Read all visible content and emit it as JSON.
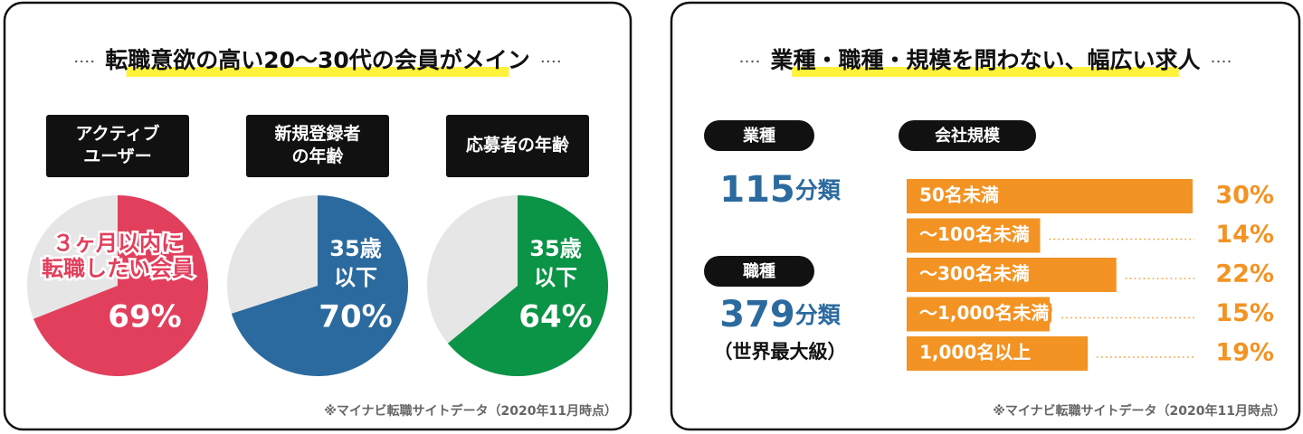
{
  "panels": [
    {
      "title": "転職意欲の高い20〜30代の会員がメイン",
      "source": "※マイナビ転職サイトデータ（2020年11月時点）"
    },
    {
      "title": "業種・職種・規模を問わない、幅広い求人",
      "source": "※マイナビ転職サイトデータ（2020年11月時点）"
    }
  ],
  "chart_data": [
    {
      "type": "pie",
      "title": [
        "アクティブ",
        "ユーザー"
      ],
      "annotation": [
        "３ヶ月以内に",
        "転職したい会員"
      ],
      "values": [
        69
      ],
      "value_labels": [
        "69%"
      ],
      "color": "#e23f5c"
    },
    {
      "type": "pie",
      "title": [
        "新規登録者",
        "の年齢"
      ],
      "annotation": [
        "35歳",
        "以下"
      ],
      "values": [
        70
      ],
      "value_labels": [
        "70%"
      ],
      "color": "#2b6a9e"
    },
    {
      "type": "pie",
      "title": [
        "応募者の年齢"
      ],
      "annotation": [
        "35歳",
        "以下"
      ],
      "values": [
        64
      ],
      "value_labels": [
        "64%"
      ],
      "color": "#0b9346"
    },
    {
      "type": "bar",
      "title": "会社規模",
      "categories": [
        "50名未満",
        "〜100名未満",
        "〜300名未満",
        "〜1,000名未満",
        "1,000名以上"
      ],
      "values": [
        30,
        14,
        22,
        15,
        19
      ],
      "value_labels": [
        "30%",
        "14%",
        "22%",
        "15%",
        "19%"
      ],
      "color": "#f39323"
    }
  ],
  "stats": [
    {
      "label": "業種",
      "value": 115,
      "unit": "分類"
    },
    {
      "label": "職種",
      "value": 379,
      "unit": "分類",
      "note": "（世界最大級）"
    }
  ]
}
